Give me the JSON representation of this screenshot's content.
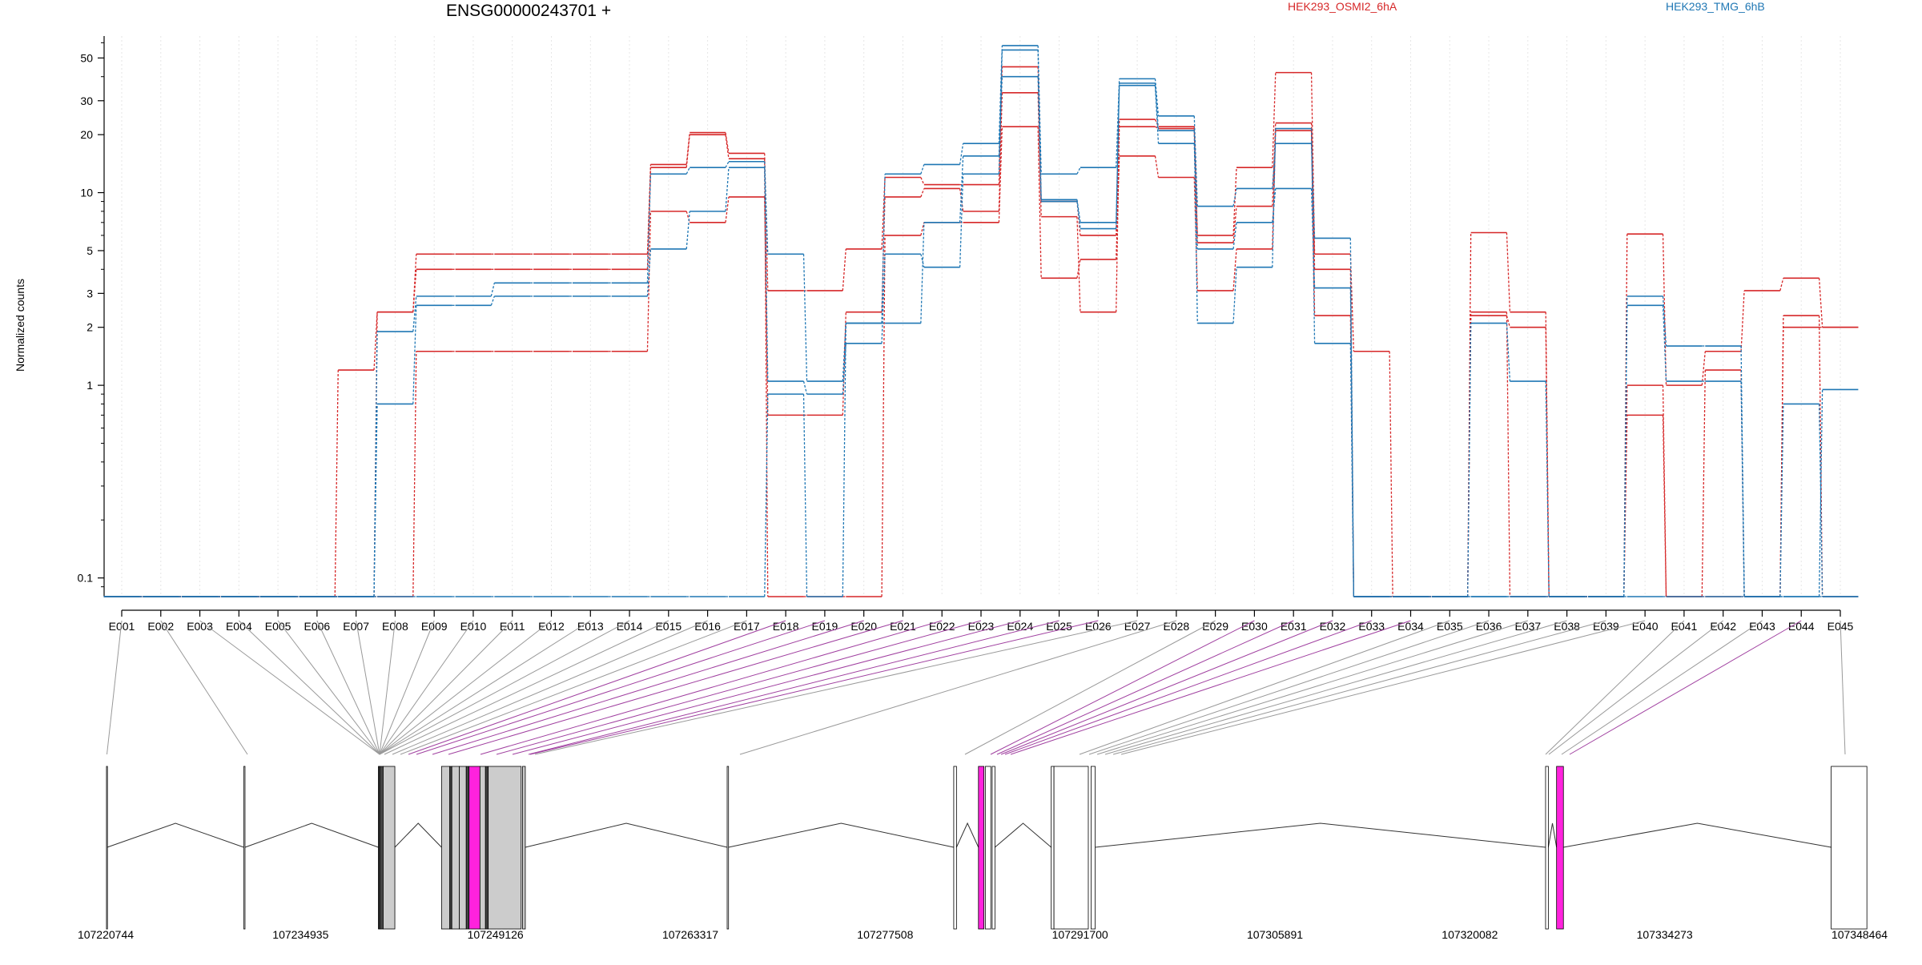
{
  "chart_data": {
    "type": "line",
    "title": "ENSG00000243701 +",
    "ylabel": "Normalized counts",
    "xlabel": "",
    "yscale": "log",
    "ylim": [
      0.08,
      65
    ],
    "yticks": [
      0.1,
      1,
      2,
      3,
      5,
      10,
      20,
      30,
      50
    ],
    "ytick_labels": [
      "0.1",
      "1",
      "2",
      "3",
      "5",
      "10",
      "20",
      "30",
      "50"
    ],
    "grid": "vertical dotted at exons",
    "legend": [
      "HEK293_OSMI2_6hA",
      "HEK293_TMG_6hB"
    ],
    "legend_placement": "top",
    "colors": {
      "red": "#d62728",
      "blue": "#1f77b4",
      "highlight": "#ff22dd",
      "gray": "#cccccc"
    },
    "categories": [
      "E001",
      "E002",
      "E003",
      "E004",
      "E005",
      "E006",
      "E007",
      "E008",
      "E009",
      "E010",
      "E011",
      "E012",
      "E013",
      "E014",
      "E015",
      "E016",
      "E017",
      "E018",
      "E019",
      "E020",
      "E021",
      "E022",
      "E023",
      "E024",
      "E025",
      "E026",
      "E027",
      "E028",
      "E029",
      "E030",
      "E031",
      "E032",
      "E033",
      "E034",
      "E035",
      "E036",
      "E037",
      "E038",
      "E039",
      "E040",
      "E041",
      "E042",
      "E043",
      "E044",
      "E045"
    ],
    "series": [
      {
        "color": "red",
        "values": [
          0.08,
          0.08,
          0.08,
          0.08,
          0.08,
          0.08,
          1.2,
          2.4,
          4.8,
          4.8,
          4.8,
          4.8,
          4.8,
          4.8,
          14,
          20.5,
          16,
          3.1,
          3.1,
          5.1,
          12,
          11,
          11,
          45,
          9,
          6,
          24,
          22,
          6,
          13.5,
          42,
          4.8,
          1.5,
          0.08,
          0.08,
          6.2,
          2.4,
          0.08,
          0.08,
          6.1,
          1.0,
          1.5,
          3.1,
          3.6,
          2.0
        ]
      },
      {
        "color": "red",
        "values": [
          0.08,
          0.08,
          0.08,
          0.08,
          0.08,
          0.08,
          0.08,
          0.08,
          1.5,
          1.5,
          1.5,
          1.5,
          1.5,
          1.5,
          8.0,
          7.0,
          9.5,
          0.7,
          0.7,
          2.4,
          9.5,
          10.5,
          8.0,
          33,
          7.5,
          2.4,
          22,
          21.5,
          5.5,
          8.5,
          23,
          4.0,
          0.08,
          0.08,
          0.08,
          2.3,
          2.0,
          0.08,
          0.08,
          0.7,
          0.08,
          1.2,
          0.08,
          2.0,
          2.0
        ]
      },
      {
        "color": "red",
        "values": [
          0.08,
          0.08,
          0.08,
          0.08,
          0.08,
          0.08,
          0.08,
          2.4,
          4.0,
          4.0,
          4.0,
          4.0,
          4.0,
          4.0,
          13.5,
          20,
          15,
          0.08,
          0.08,
          0.08,
          6.0,
          7.0,
          7.0,
          22,
          3.6,
          4.5,
          15.5,
          12,
          3.1,
          5.1,
          21,
          2.3,
          0.08,
          0.08,
          0.08,
          2.4,
          0.08,
          0.08,
          0.08,
          1.0,
          0.08,
          0.08,
          0.08,
          2.3,
          0.08
        ]
      },
      {
        "color": "blue",
        "values": [
          0.08,
          0.08,
          0.08,
          0.08,
          0.08,
          0.08,
          0.08,
          1.9,
          2.9,
          2.9,
          3.4,
          3.4,
          3.4,
          3.4,
          12.5,
          13.5,
          14.5,
          4.8,
          1.05,
          2.1,
          12.5,
          14,
          18,
          58,
          12.5,
          13.5,
          39,
          25,
          8.5,
          10.5,
          18,
          5.8,
          0.08,
          0.08,
          0.08,
          2.1,
          1.05,
          0.08,
          0.08,
          2.9,
          1.6,
          1.6,
          0.08,
          0.08,
          0.95
        ]
      },
      {
        "color": "blue",
        "values": [
          0.08,
          0.08,
          0.08,
          0.08,
          0.08,
          0.08,
          0.08,
          0.8,
          2.6,
          2.6,
          2.9,
          2.9,
          2.9,
          2.9,
          5.1,
          8.0,
          13.5,
          1.05,
          0.9,
          1.65,
          4.8,
          4.1,
          12.5,
          55,
          9.2,
          7.0,
          36,
          18,
          5.1,
          7.0,
          10.5,
          3.2,
          0.08,
          0.08,
          0.08,
          0.08,
          0.08,
          0.08,
          0.08,
          2.6,
          1.05,
          1.05,
          0.08,
          0.8,
          0.08
        ]
      },
      {
        "color": "blue",
        "values": [
          0.08,
          0.08,
          0.08,
          0.08,
          0.08,
          0.08,
          0.08,
          0.08,
          0.08,
          0.08,
          0.08,
          0.08,
          0.08,
          0.08,
          0.08,
          0.08,
          0.08,
          0.9,
          0.08,
          2.1,
          2.1,
          7.0,
          15.5,
          40,
          9.0,
          6.5,
          37,
          21,
          2.1,
          4.1,
          21.5,
          1.65,
          0.08,
          0.08,
          0.08,
          0.08,
          0.08,
          0.08,
          0.08,
          0.08,
          0.08,
          0.08,
          0.08,
          0.08,
          0.08
        ]
      }
    ],
    "gene_model": {
      "coord_labels": [
        "107220744",
        "107234935",
        "107249126",
        "107263317",
        "107277508",
        "107291700",
        "107305891",
        "107320082",
        "107334273",
        "107348464"
      ],
      "exons": [
        [
          107220800,
          107220850,
          "w"
        ],
        [
          107230800,
          107230890,
          "w"
        ],
        [
          107240600,
          107240700,
          "d"
        ],
        [
          107240700,
          107240950,
          "d"
        ],
        [
          107240950,
          107241800,
          "g"
        ],
        [
          107245200,
          107245800,
          "g"
        ],
        [
          107245800,
          107245950,
          "d"
        ],
        [
          107245950,
          107246500,
          "g"
        ],
        [
          107246500,
          107247000,
          "g"
        ],
        [
          107247000,
          107247200,
          "d"
        ],
        [
          107247200,
          107248000,
          "m"
        ],
        [
          107248000,
          107248400,
          "g"
        ],
        [
          107248400,
          107248600,
          "d"
        ],
        [
          107248600,
          107251000,
          "g"
        ],
        [
          107251100,
          107251300,
          "g"
        ],
        [
          107266000,
          107266100,
          "w"
        ],
        [
          107282500,
          107282700,
          "w"
        ],
        [
          107284300,
          107284700,
          "m"
        ],
        [
          107284800,
          107285200,
          "w"
        ],
        [
          107285300,
          107285500,
          "w"
        ],
        [
          107289600,
          107289800,
          "w"
        ],
        [
          107289800,
          107292300,
          "w"
        ],
        [
          107292500,
          107292800,
          "w"
        ],
        [
          107325600,
          107325800,
          "w"
        ],
        [
          107326400,
          107326900,
          "m"
        ],
        [
          107346400,
          107349000,
          "w"
        ]
      ]
    }
  }
}
